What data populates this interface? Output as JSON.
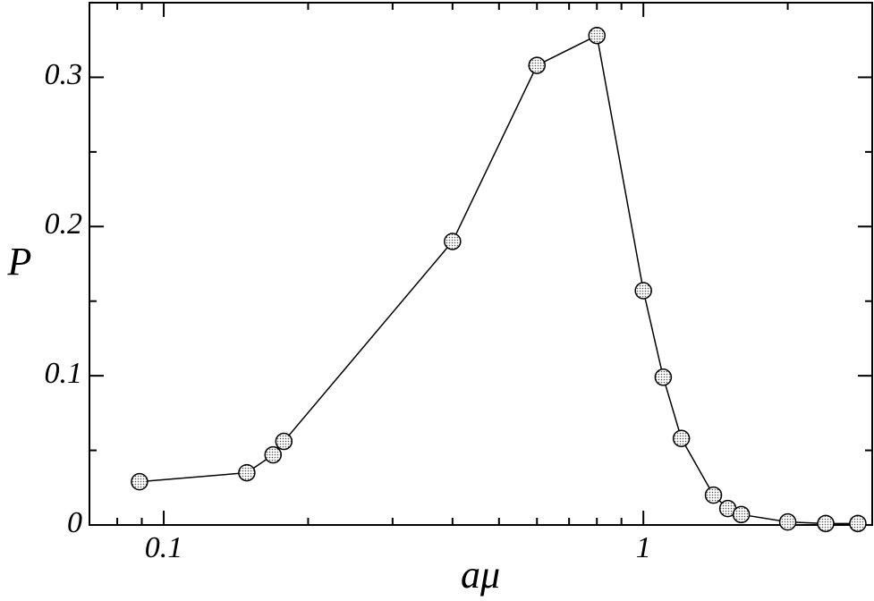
{
  "chart_data": {
    "type": "line",
    "x_label": "aμ",
    "y_label": "P",
    "x": [
      0.089,
      0.149,
      0.169,
      0.178,
      0.4,
      0.6,
      0.8,
      1.0,
      1.1,
      1.2,
      1.4,
      1.5,
      1.6,
      2.0,
      2.4,
      2.8
    ],
    "series": [
      {
        "color": "#000000",
        "values": [
          0.029,
          0.035,
          0.047,
          0.056,
          0.19,
          0.308,
          0.328,
          0.157,
          0.099,
          0.058,
          0.02,
          0.011,
          0.007,
          0.002,
          0.001,
          0.001
        ]
      }
    ],
    "xscale": "log",
    "xlim": [
      0.07,
      3
    ],
    "ylim": [
      0,
      0.35
    ],
    "xticks": [
      0.1,
      1
    ],
    "xminorticks": [
      0.08,
      0.09,
      0.2,
      0.3,
      0.4,
      0.5,
      0.6,
      0.7,
      0.8,
      0.9,
      2,
      3
    ],
    "yticks": [
      0,
      0.1,
      0.2,
      0.3
    ],
    "yminorticks": [
      0.05,
      0.15,
      0.25,
      0.35
    ]
  }
}
